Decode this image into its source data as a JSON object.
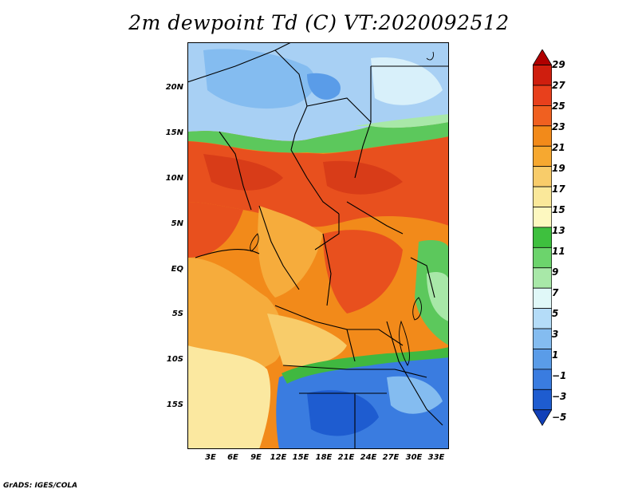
{
  "title": "2m dewpoint Td (C) VT:2020092512",
  "footer": "GrADS: IGES/COLA",
  "y_axis_labels": [
    "20N",
    "15N",
    "10N",
    "5N",
    "EQ",
    "5S",
    "10S",
    "15S"
  ],
  "x_axis_labels": [
    "3E",
    "6E",
    "9E",
    "12E",
    "15E",
    "18E",
    "21E",
    "24E",
    "27E",
    "30E",
    "33E"
  ],
  "colorbar": {
    "labels": [
      "29",
      "27",
      "25",
      "23",
      "21",
      "19",
      "17",
      "15",
      "13",
      "11",
      "9",
      "7",
      "5",
      "3",
      "1",
      "−1",
      "−3",
      "−5"
    ],
    "colors": [
      "#b00000",
      "#cf1e0e",
      "#e8401c",
      "#f06020",
      "#f28a1a",
      "#f6a830",
      "#f8cc6a",
      "#fae89a",
      "#fdf8c0",
      "#3ec03e",
      "#6cd46c",
      "#a8e8a8",
      "#e0f8f8",
      "#b4dcf8",
      "#84bcf0",
      "#5a9ce8",
      "#3a7ce0",
      "#1e5cd0",
      "#1240b8"
    ]
  },
  "map_colors": {
    "sahara": "#a8d0f4",
    "sahara_dark": "#70a8ec",
    "sahel_green": "#5cc85c",
    "red_band": "#e8501e",
    "orange": "#f28a1a",
    "light_orange": "#f6ac3c",
    "pale_yellow": "#fbe8a0",
    "south_blue": "#3a7ce0",
    "south_green": "#40b840"
  }
}
